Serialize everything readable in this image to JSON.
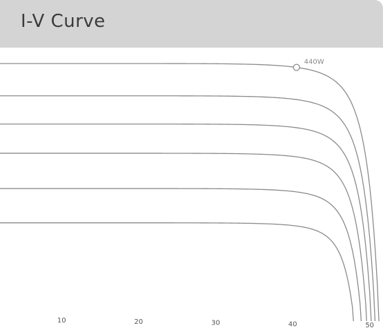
{
  "header": {
    "title": "I-V  Curve"
  },
  "chart_data": {
    "type": "line",
    "title": "I-V  Curve",
    "xlabel": "",
    "ylabel": "",
    "xlim": [
      2,
      52
    ],
    "x_ticks": [
      10,
      20,
      30,
      40,
      50
    ],
    "curve_color": "#8a8a8a",
    "series": [
      {
        "i_sc": 12.5,
        "v_oc": 51.2,
        "knee_v": 40,
        "shape": 3.6
      },
      {
        "i_sc": 10.9,
        "v_oc": 50.7,
        "knee_v": 38,
        "shape": 3.6
      },
      {
        "i_sc": 9.5,
        "v_oc": 50.2,
        "knee_v": 37,
        "shape": 3.6
      },
      {
        "i_sc": 8.05,
        "v_oc": 49.6,
        "knee_v": 37,
        "shape": 3.6
      },
      {
        "i_sc": 6.3,
        "v_oc": 48.9,
        "knee_v": 36,
        "shape": 3.6
      },
      {
        "i_sc": 4.6,
        "v_oc": 47.9,
        "knee_v": 34,
        "shape": 3.6
      }
    ],
    "annotations": [
      {
        "label": "440W",
        "series_index": 0,
        "x": 40.5
      }
    ]
  }
}
